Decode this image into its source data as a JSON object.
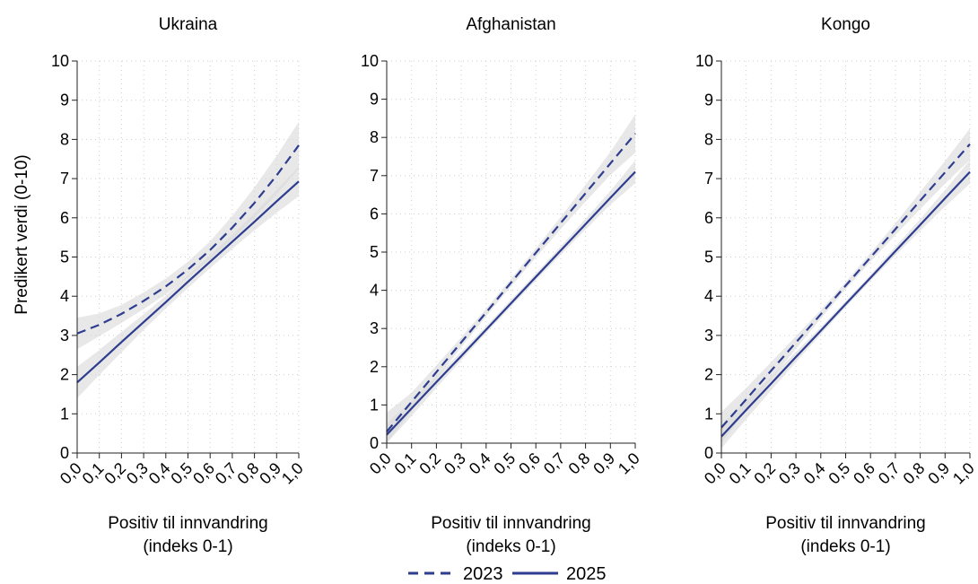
{
  "chart_data": [
    {
      "type": "line",
      "title": "Ukraina",
      "xlabel": [
        "Positiv til innvandring",
        "(indeks 0-1)"
      ],
      "ylabel": "Predikert verdi (0-10)",
      "xlim": [
        0,
        1
      ],
      "ylim": [
        0,
        10
      ],
      "x_ticks": [
        "0,0",
        "0,1",
        "0,2",
        "0,3",
        "0,4",
        "0,5",
        "0,6",
        "0,7",
        "0,8",
        "0,9",
        "1,0"
      ],
      "y_ticks": [
        "0",
        "1",
        "2",
        "3",
        "4",
        "5",
        "6",
        "7",
        "8",
        "9",
        "10"
      ],
      "grid": true,
      "x": [
        0,
        0.1,
        0.2,
        0.3,
        0.4,
        0.5,
        0.6,
        0.7,
        0.8,
        0.9,
        1.0
      ],
      "series": [
        {
          "name": "2023",
          "style": "dashed",
          "values": [
            3.05,
            3.27,
            3.55,
            3.88,
            4.25,
            4.68,
            5.18,
            5.75,
            6.38,
            7.08,
            7.85
          ],
          "ci_low": [
            2.65,
            2.98,
            3.32,
            3.67,
            4.05,
            4.48,
            4.95,
            5.45,
            6.0,
            6.6,
            7.25
          ],
          "ci_high": [
            3.45,
            3.56,
            3.78,
            4.1,
            4.45,
            4.88,
            5.4,
            6.05,
            6.78,
            7.58,
            8.45
          ]
        },
        {
          "name": "2025",
          "style": "solid",
          "values": [
            1.8,
            2.31,
            2.83,
            3.34,
            3.85,
            4.37,
            4.88,
            5.39,
            5.9,
            6.42,
            6.93
          ],
          "ci_low": [
            1.4,
            1.99,
            2.57,
            3.14,
            3.69,
            4.21,
            4.72,
            5.21,
            5.68,
            6.13,
            6.55
          ],
          "ci_high": [
            2.2,
            2.63,
            3.09,
            3.54,
            4.01,
            4.53,
            5.04,
            5.57,
            6.12,
            6.71,
            7.31
          ]
        }
      ]
    },
    {
      "type": "line",
      "title": "Afghanistan",
      "xlabel": [
        "Positiv til innvandring",
        "(indeks 0-1)"
      ],
      "ylabel": "",
      "xlim": [
        0,
        1
      ],
      "ylim": [
        0,
        10
      ],
      "x_ticks": [
        "0,0",
        "0,1",
        "0,2",
        "0,3",
        "0,4",
        "0,5",
        "0,6",
        "0,7",
        "0,8",
        "0,9",
        "1,0"
      ],
      "y_ticks": [
        "0",
        "1",
        "2",
        "3",
        "4",
        "5",
        "6",
        "7",
        "8",
        "9",
        "10"
      ],
      "grid": true,
      "x": [
        0,
        0.1,
        0.2,
        0.3,
        0.4,
        0.5,
        0.6,
        0.7,
        0.8,
        0.9,
        1.0
      ],
      "series": [
        {
          "name": "2023",
          "style": "dashed",
          "values": [
            0.3,
            1.08,
            1.86,
            2.64,
            3.42,
            4.2,
            4.98,
            5.76,
            6.54,
            7.32,
            8.1
          ],
          "ci_low": [
            0.0,
            0.84,
            1.68,
            2.51,
            3.32,
            4.1,
            4.86,
            5.6,
            6.32,
            7.02,
            7.6
          ],
          "ci_high": [
            0.8,
            1.32,
            2.04,
            2.77,
            3.52,
            4.3,
            5.1,
            5.92,
            6.76,
            7.62,
            8.6
          ]
        },
        {
          "name": "2025",
          "style": "solid",
          "values": [
            0.22,
            0.91,
            1.6,
            2.28,
            2.97,
            3.66,
            4.35,
            5.04,
            5.73,
            6.42,
            7.1
          ],
          "ci_low": [
            0.0,
            0.71,
            1.45,
            2.17,
            2.88,
            3.57,
            4.26,
            4.93,
            5.59,
            6.24,
            6.8
          ],
          "ci_high": [
            0.52,
            1.11,
            1.75,
            2.39,
            3.06,
            3.75,
            4.44,
            5.15,
            5.87,
            6.6,
            7.4
          ]
        }
      ]
    },
    {
      "type": "line",
      "title": "Kongo",
      "xlabel": [
        "Positiv til innvandring",
        "(indeks 0-1)"
      ],
      "ylabel": "",
      "xlim": [
        0,
        1
      ],
      "ylim": [
        0,
        10
      ],
      "x_ticks": [
        "0,0",
        "0,1",
        "0,2",
        "0,3",
        "0,4",
        "0,5",
        "0,6",
        "0,7",
        "0,8",
        "0,9",
        "1,0"
      ],
      "y_ticks": [
        "0",
        "1",
        "2",
        "3",
        "4",
        "5",
        "6",
        "7",
        "8",
        "9",
        "10"
      ],
      "grid": true,
      "x": [
        0,
        0.1,
        0.2,
        0.3,
        0.4,
        0.5,
        0.6,
        0.7,
        0.8,
        0.9,
        1.0
      ],
      "series": [
        {
          "name": "2023",
          "style": "dashed",
          "values": [
            0.65,
            1.37,
            2.1,
            2.82,
            3.54,
            4.27,
            4.99,
            5.71,
            6.44,
            7.16,
            7.88
          ],
          "ci_low": [
            0.25,
            1.08,
            1.88,
            2.66,
            3.43,
            4.18,
            4.88,
            5.56,
            6.22,
            6.87,
            7.48
          ],
          "ci_high": [
            1.05,
            1.66,
            2.32,
            2.98,
            3.65,
            4.36,
            5.1,
            5.86,
            6.66,
            7.45,
            8.28
          ]
        },
        {
          "name": "2025",
          "style": "solid",
          "values": [
            0.42,
            1.1,
            1.77,
            2.45,
            3.12,
            3.8,
            4.47,
            5.15,
            5.82,
            6.5,
            7.17
          ],
          "ci_low": [
            0.12,
            0.86,
            1.6,
            2.32,
            3.03,
            3.72,
            4.39,
            5.04,
            5.67,
            6.29,
            6.87
          ],
          "ci_high": [
            0.72,
            1.34,
            1.94,
            2.58,
            3.21,
            3.88,
            4.55,
            5.26,
            5.97,
            6.71,
            7.47
          ]
        }
      ]
    }
  ],
  "legend": {
    "placement": "bottom-center",
    "items": [
      {
        "label": "2023",
        "style": "dashed"
      },
      {
        "label": "2025",
        "style": "solid"
      }
    ]
  },
  "colors": {
    "line": "#2e3d8f",
    "band": "#d9d9d9",
    "grid": "#cfcfcf",
    "axis": "#222222"
  }
}
